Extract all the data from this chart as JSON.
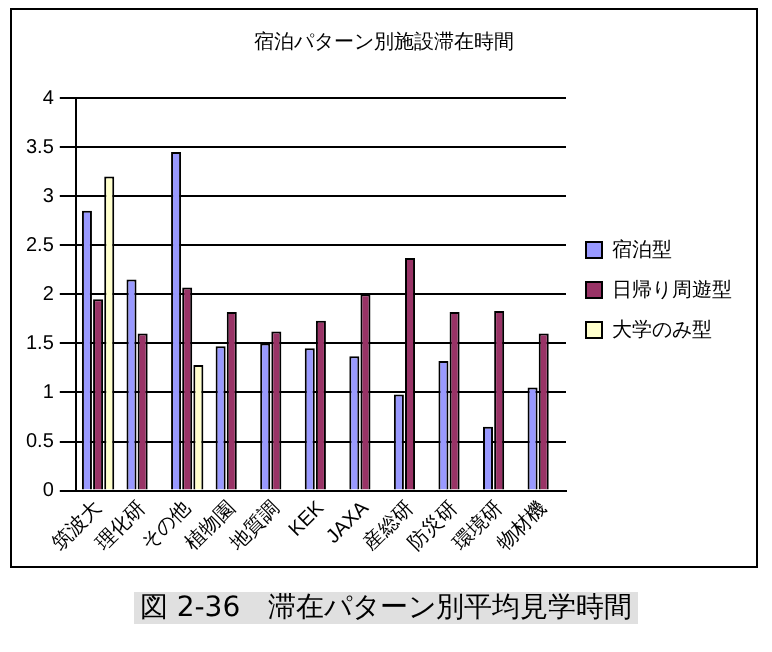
{
  "chart_data": {
    "type": "bar",
    "title": "宿泊パターン別施設滞在時間",
    "categories": [
      "筑波大",
      "理化研",
      "その他",
      "植物園",
      "地質調",
      "KEK",
      "JAXA",
      "産総研",
      "防災研",
      "環境研",
      "物材機"
    ],
    "series": [
      {
        "name": "宿泊型",
        "color": "#9999ff",
        "values": [
          2.85,
          2.15,
          3.45,
          1.47,
          1.5,
          1.45,
          1.37,
          0.98,
          1.32,
          0.65,
          1.05
        ]
      },
      {
        "name": "日帰り周遊型",
        "color": "#993366",
        "values": [
          1.95,
          1.6,
          2.07,
          1.82,
          1.62,
          1.73,
          2.0,
          2.37,
          1.82,
          1.83,
          1.6
        ]
      },
      {
        "name": "大学のみ型",
        "color": "#ffffcc",
        "values": [
          3.2,
          null,
          1.28,
          null,
          null,
          null,
          null,
          null,
          null,
          null,
          null
        ]
      }
    ],
    "ylim": [
      0,
      4
    ],
    "yticks": [
      0,
      0.5,
      1,
      1.5,
      2,
      2.5,
      3,
      3.5,
      4
    ],
    "grid": "y",
    "legend": "right",
    "annotations": [
      "図 2-36　滞在パターン別平均見学時間"
    ]
  }
}
